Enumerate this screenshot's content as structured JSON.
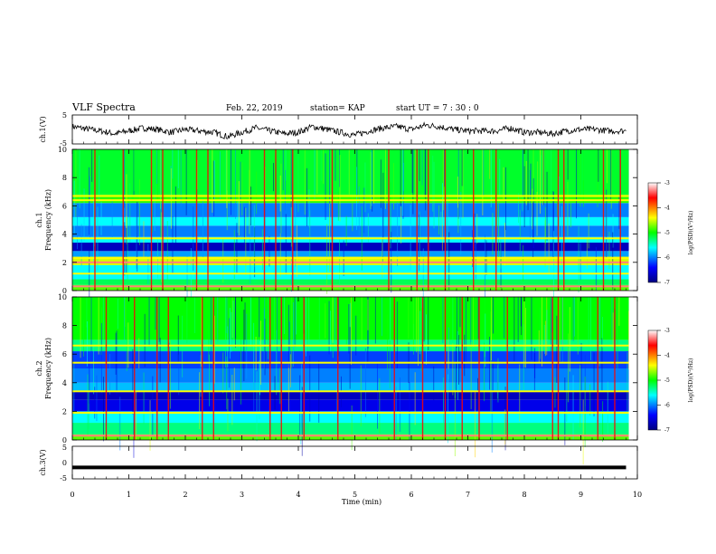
{
  "header": {
    "title": "VLF Spectra",
    "date": "Feb. 22, 2019",
    "station": "station= KAP",
    "start": "start  UT =   7 : 30 : 0"
  },
  "chart_data": [
    {
      "type": "line",
      "panel": "ch1-waveform",
      "ylabel": "ch.1(V)",
      "ylim": [
        -5,
        5
      ],
      "yticks": [
        "5",
        "-5"
      ],
      "x": [
        0,
        0.25,
        0.5,
        0.75,
        1.0,
        1.25,
        1.5,
        1.75,
        2.0,
        2.25,
        2.5,
        2.75,
        3.0,
        3.25,
        3.5,
        3.75,
        4.0,
        4.25,
        4.5,
        4.75,
        5.0,
        5.25,
        5.5,
        5.75,
        6.0,
        6.25,
        6.5,
        6.75,
        7.0,
        7.25,
        7.5,
        7.75,
        8.0,
        8.25,
        8.5,
        8.75,
        9.0,
        9.25,
        9.5,
        9.8
      ],
      "y": [
        1.0,
        0.2,
        -0.5,
        -1.5,
        -0.5,
        0.5,
        0.0,
        -1.0,
        0.0,
        -0.5,
        -1.0,
        -2.5,
        -1.0,
        0.5,
        -0.5,
        -1.5,
        -1.0,
        1.0,
        0.0,
        -1.0,
        -2.0,
        -0.5,
        0.5,
        1.0,
        0.0,
        1.5,
        1.0,
        0.0,
        -0.5,
        -0.5,
        -0.5,
        0.5,
        -1.0,
        -1.0,
        -1.5,
        -0.5,
        0.0,
        0.0,
        -0.5,
        -0.5
      ]
    },
    {
      "type": "heatmap",
      "panel": "ch1-spectrogram",
      "ylabel": "ch.1 Frequency (kHz)",
      "ylim": [
        0,
        10
      ],
      "yticks": [
        "0",
        "2",
        "4",
        "6",
        "8",
        "10"
      ],
      "xlim": [
        0,
        10
      ],
      "colorbar": {
        "label": "log(PSD)(V²/Hz)",
        "range": [
          -7,
          -3
        ],
        "ticks": [
          "-3",
          "-4",
          "-5",
          "-6",
          "-7"
        ]
      },
      "bands": [
        {
          "from": 0,
          "to": 0.4,
          "level": -4.8
        },
        {
          "from": 0.4,
          "to": 0.8,
          "level": -5.2
        },
        {
          "from": 0.8,
          "to": 1.8,
          "level": -5.6
        },
        {
          "from": 1.8,
          "to": 2.4,
          "level": -4.5
        },
        {
          "from": 2.4,
          "to": 2.8,
          "level": -5.9
        },
        {
          "from": 2.8,
          "to": 3.4,
          "level": -6.7
        },
        {
          "from": 3.4,
          "to": 3.8,
          "level": -5.6
        },
        {
          "from": 3.8,
          "to": 4.6,
          "level": -6.0
        },
        {
          "from": 4.6,
          "to": 5.2,
          "level": -5.6
        },
        {
          "from": 5.2,
          "to": 6.2,
          "level": -6.0
        },
        {
          "from": 6.2,
          "to": 6.8,
          "level": -4.9
        },
        {
          "from": 6.8,
          "to": 10.0,
          "level": -5.1
        }
      ],
      "lines": [
        {
          "freq": 0.3,
          "level": -3.3
        },
        {
          "freq": 1.2,
          "level": -4.4
        },
        {
          "freq": 2.0,
          "level": -3.3
        },
        {
          "freq": 2.3,
          "level": -4.4
        },
        {
          "freq": 3.7,
          "level": -4.4
        },
        {
          "freq": 6.4,
          "level": -4.4
        },
        {
          "freq": 6.7,
          "level": -4.4
        }
      ],
      "sferics": [
        0.4,
        0.9,
        1.4,
        1.6,
        2.2,
        2.4,
        3.4,
        3.6,
        3.9,
        4.6,
        5.6,
        6.1,
        6.3,
        6.6,
        7.1,
        7.5,
        8.6,
        8.7,
        9.4,
        9.7
      ]
    },
    {
      "type": "heatmap",
      "panel": "ch2-spectrogram",
      "ylabel": "ch.2 Frequency (kHz)",
      "ylim": [
        0,
        10
      ],
      "yticks": [
        "0",
        "2",
        "4",
        "6",
        "8",
        "10"
      ],
      "xlim": [
        0,
        10
      ],
      "colorbar": {
        "label": "log(PSD)(V²/Hz)",
        "range": [
          -7,
          -3
        ],
        "ticks": [
          "-3",
          "-4",
          "-5",
          "-6",
          "-7"
        ]
      },
      "bands": [
        {
          "from": 0,
          "to": 0.4,
          "level": -4.8
        },
        {
          "from": 0.4,
          "to": 1.2,
          "level": -5.3
        },
        {
          "from": 1.2,
          "to": 2.0,
          "level": -5.6
        },
        {
          "from": 2.0,
          "to": 2.8,
          "level": -6.5
        },
        {
          "from": 2.8,
          "to": 3.4,
          "level": -6.7
        },
        {
          "from": 3.4,
          "to": 4.0,
          "level": -5.8
        },
        {
          "from": 4.0,
          "to": 5.0,
          "level": -6.0
        },
        {
          "from": 5.0,
          "to": 6.2,
          "level": -6.2
        },
        {
          "from": 6.2,
          "to": 7.0,
          "level": -5.3
        },
        {
          "from": 7.0,
          "to": 10.0,
          "level": -5.0
        }
      ],
      "lines": [
        {
          "freq": 0.3,
          "level": -3.3
        },
        {
          "freq": 1.9,
          "level": -4.4
        },
        {
          "freq": 3.4,
          "level": -4.4
        },
        {
          "freq": 5.4,
          "level": -4.4
        },
        {
          "freq": 6.6,
          "level": -4.4
        }
      ],
      "sferics": [
        0.6,
        1.1,
        1.5,
        1.7,
        2.3,
        2.5,
        3.5,
        3.7,
        4.1,
        4.7,
        5.7,
        6.2,
        6.6,
        6.9,
        7.2,
        7.7,
        8.5,
        8.6,
        9.3,
        9.6
      ]
    },
    {
      "type": "line",
      "panel": "ch3-waveform",
      "ylabel": "ch.3(V)",
      "ylim": [
        -5,
        5
      ],
      "yticks": [
        "5",
        "0",
        "-5"
      ],
      "x": [
        0,
        9.8
      ],
      "y": [
        -1.5,
        -1.5
      ]
    }
  ],
  "xaxis": {
    "label": "Time  (min)",
    "ticks": [
      "0",
      "1",
      "2",
      "3",
      "4",
      "5",
      "6",
      "7",
      "8",
      "9",
      "10"
    ],
    "range": [
      0,
      10
    ]
  }
}
